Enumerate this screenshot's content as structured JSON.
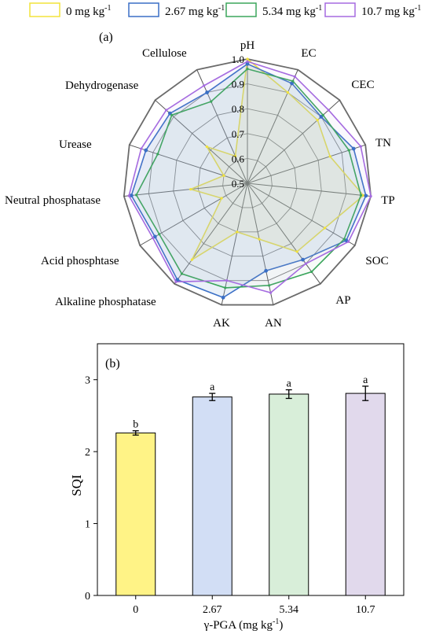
{
  "legend": {
    "entries": [
      {
        "label": "0 mg kg",
        "sup": "-1",
        "color": "#F2E33A"
      },
      {
        "label": "2.67 mg kg",
        "sup": "-1",
        "color": "#3A6FC6"
      },
      {
        "label": "5.34 mg kg",
        "sup": "-1",
        "color": "#3BA55C"
      },
      {
        "label": "10.7 mg kg",
        "sup": "-1",
        "color": "#A56BE0"
      }
    ]
  },
  "chart_data": [
    {
      "type": "radar",
      "panel_label": "(a)",
      "axes": [
        "pH",
        "EC",
        "CEC",
        "TN",
        "TP",
        "SOC",
        "AP",
        "AN",
        "AK",
        "Alkaline phosphatase",
        "Acid phosphtase",
        "Neutral phosphatase",
        "Urease",
        "Dehydrogenase",
        "Cellulose"
      ],
      "rlim": [
        0.5,
        1.0
      ],
      "rticks": [
        "0.5",
        "0.6",
        "0.7",
        "0.8",
        "0.9",
        "1.0"
      ],
      "series": [
        {
          "name": "0 mg kg-1",
          "color": "#F2E33A",
          "values": [
            1.0,
            0.9,
            0.88,
            0.85,
            0.97,
            0.86,
            0.84,
            0.73,
            0.7,
            0.88,
            0.62,
            0.73,
            0.6,
            0.72,
            0.62
          ]
        },
        {
          "name": "2.67 mg kg-1",
          "color": "#3A6FC6",
          "values": [
            0.98,
            0.94,
            0.9,
            0.95,
            0.98,
            0.96,
            0.88,
            0.86,
            0.97,
            0.98,
            0.93,
            0.97,
            0.93,
            0.92,
            0.9
          ]
        },
        {
          "name": "5.34 mg kg-1",
          "color": "#3BA55C",
          "values": [
            0.96,
            0.95,
            0.91,
            0.93,
            0.96,
            0.95,
            0.94,
            0.92,
            0.93,
            0.95,
            0.91,
            0.95,
            0.88,
            0.91,
            0.86
          ]
        },
        {
          "name": "10.7 mg kg-1",
          "color": "#A56BE0",
          "values": [
            0.99,
            0.97,
            0.94,
            0.98,
            1.0,
            0.97,
            0.9,
            0.95,
            0.9,
            0.99,
            0.94,
            0.98,
            0.95,
            0.94,
            0.93
          ]
        }
      ],
      "grid": true
    },
    {
      "type": "bar",
      "panel_label": "(b)",
      "categories": [
        "0",
        "2.67",
        "5.34",
        "10.7"
      ],
      "values": [
        2.26,
        2.76,
        2.8,
        2.81
      ],
      "errors": [
        0.03,
        0.05,
        0.06,
        0.1
      ],
      "letters": [
        "b",
        "a",
        "a",
        "a"
      ],
      "colors": [
        "#FFF386",
        "#D2DEF5",
        "#D8EED9",
        "#E1D9EC"
      ],
      "ylabel": "SQI",
      "xlabel": "γ-PGA (mg kg",
      "xlabel_sup": "-1",
      "xlabel_tail": ")",
      "ylim": [
        0,
        3.5
      ],
      "yticks": [
        "0",
        "1",
        "2",
        "3"
      ],
      "grid": false
    }
  ]
}
